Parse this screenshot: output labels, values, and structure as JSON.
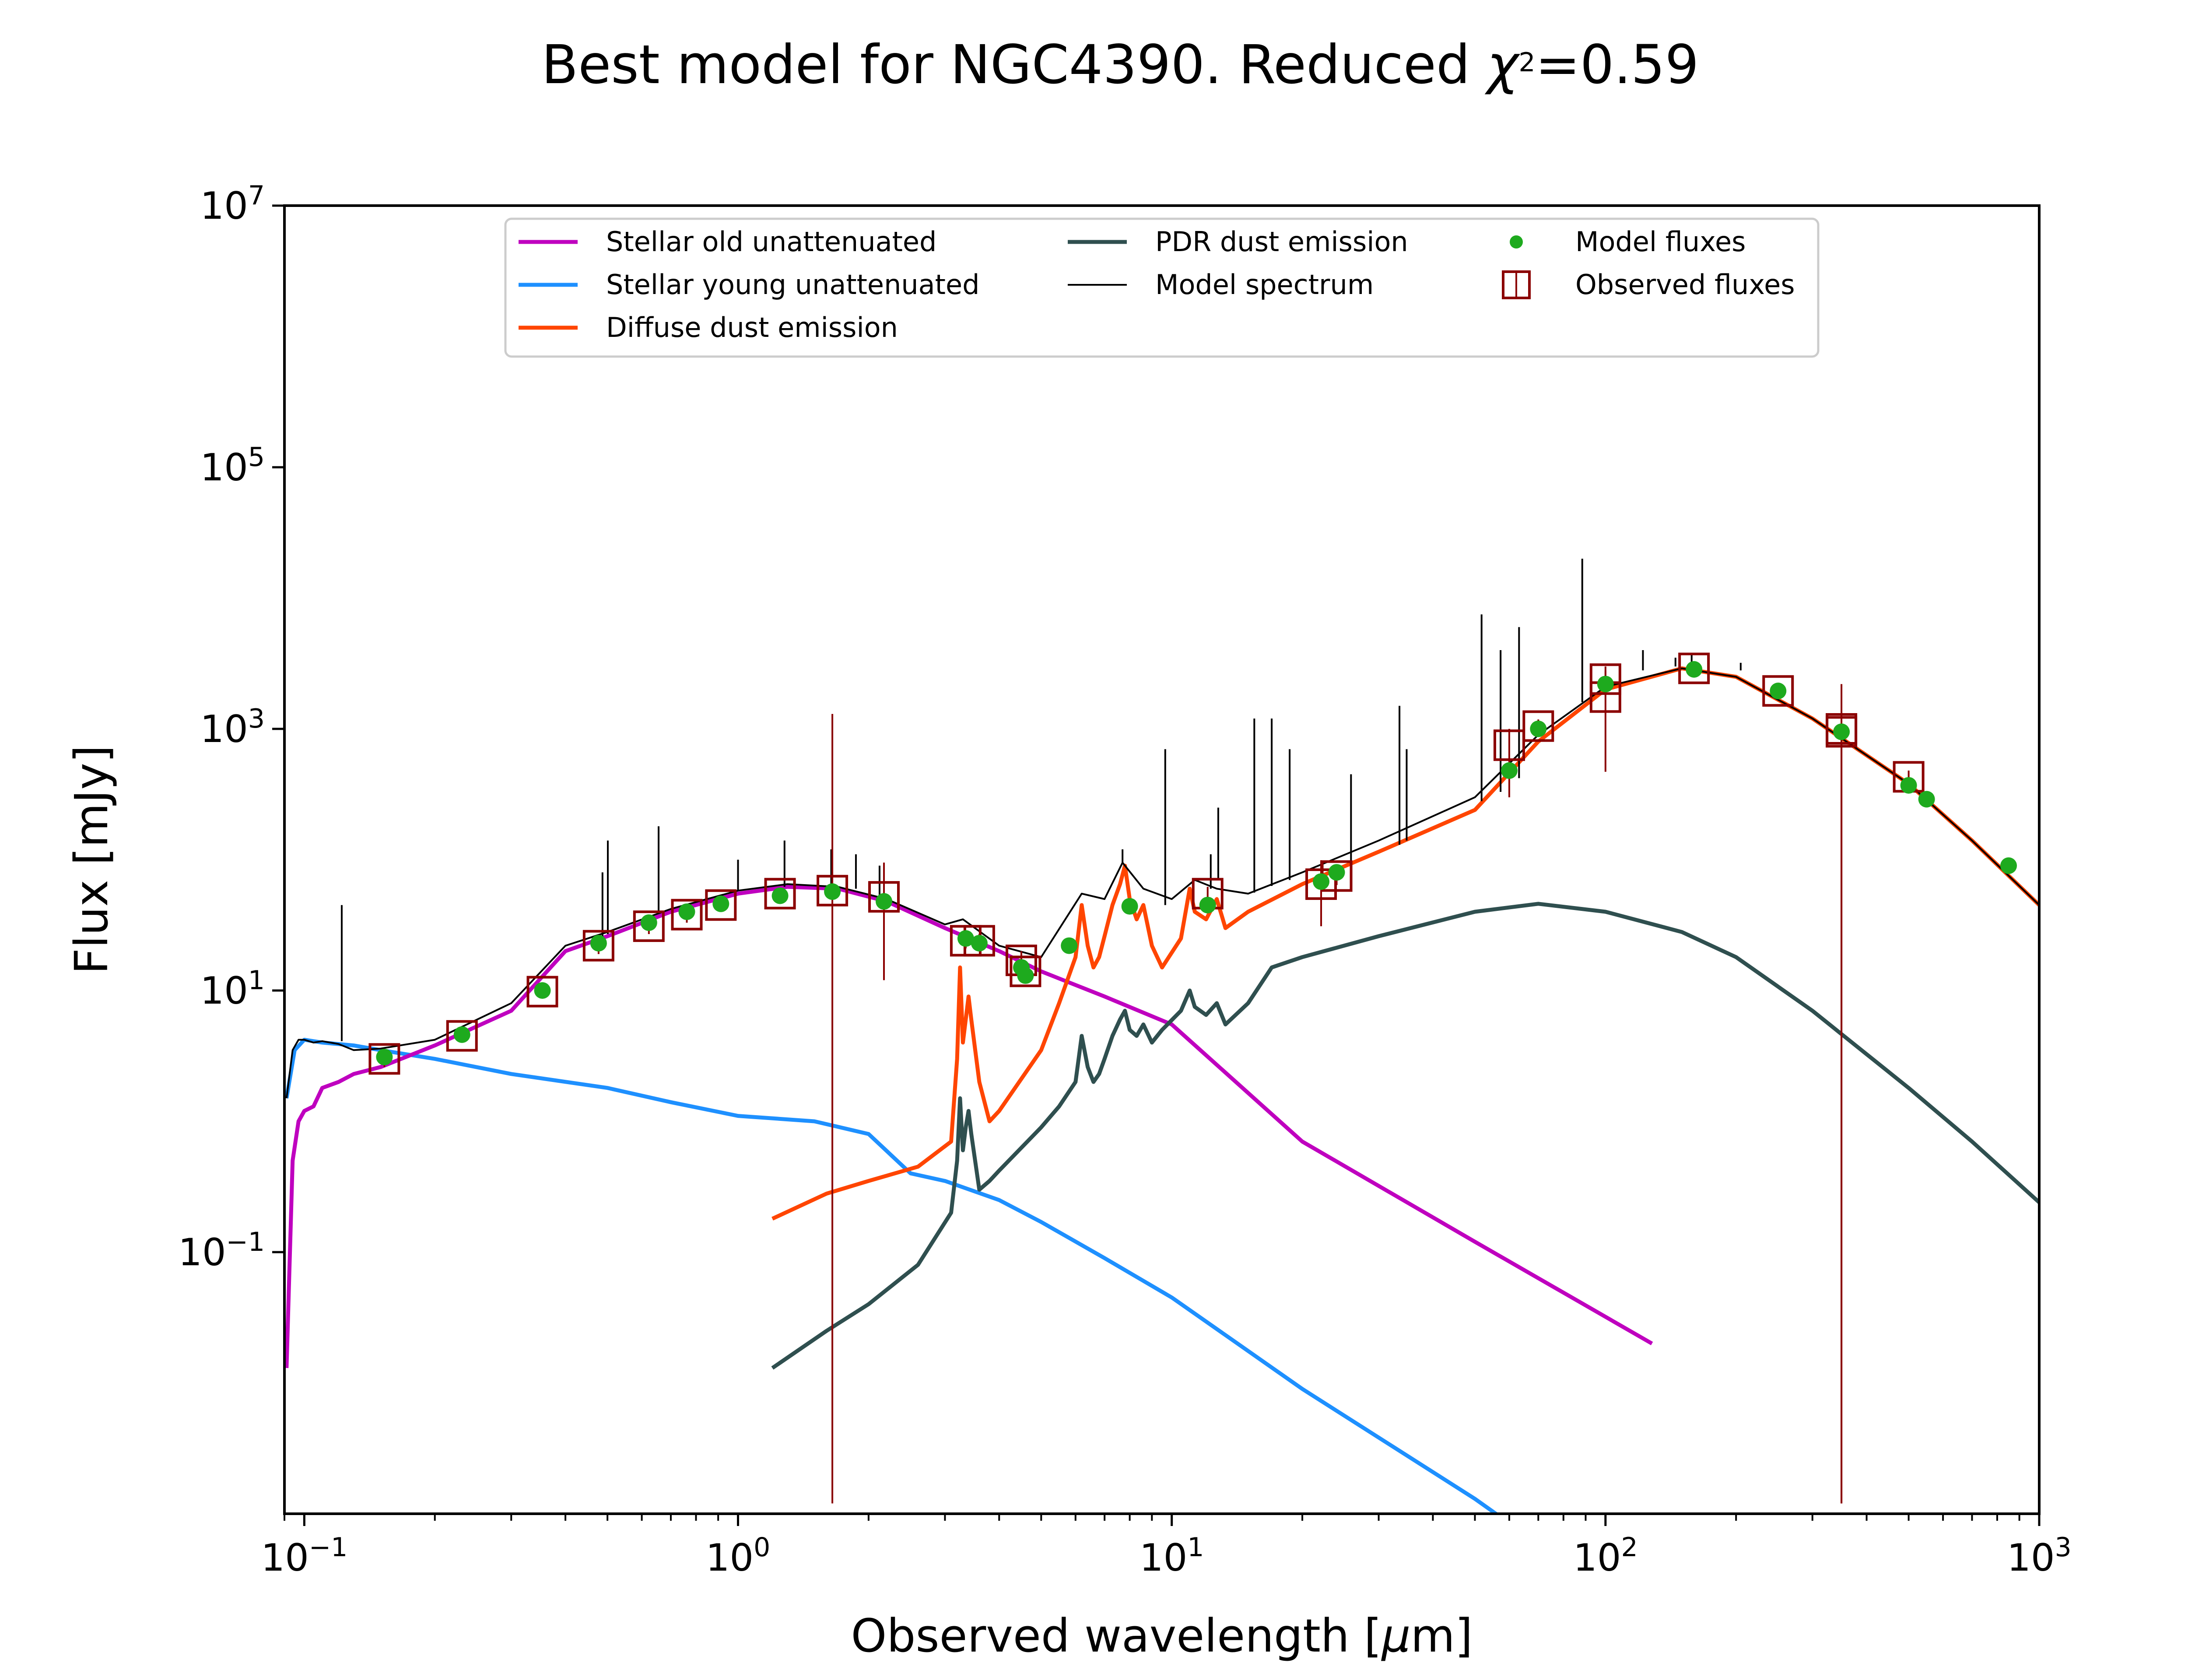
{
  "chart_data": {
    "type": "line",
    "title": "Best model for NGC4390. Reduced χ²=0.59",
    "title_parts": {
      "prefix": "Best model for NGC4390. Reduced ",
      "chi": "χ",
      "sup": "2",
      "suffix": "=0.59"
    },
    "xlabel": "Observed wavelength [μm]",
    "xlabel_parts": {
      "prefix": "Observed wavelength [",
      "mu": "μ",
      "suffix": "m]"
    },
    "ylabel": "Flux [mJy]",
    "x_scale": "log",
    "y_scale": "log",
    "xlim": [
      0.09,
      1000
    ],
    "ylim": [
      0.001,
      10000000
    ],
    "grid": false,
    "legend_position": "top-center",
    "x_ticks": [
      {
        "value": 0.1,
        "base": "10",
        "exp": "−1"
      },
      {
        "value": 1,
        "base": "10",
        "exp": "0"
      },
      {
        "value": 10,
        "base": "10",
        "exp": "1"
      },
      {
        "value": 100,
        "base": "10",
        "exp": "2"
      },
      {
        "value": 1000,
        "base": "10",
        "exp": "3"
      }
    ],
    "y_ticks": [
      {
        "value": 0.1,
        "base": "10",
        "exp": "−1"
      },
      {
        "value": 10,
        "base": "10",
        "exp": "1"
      },
      {
        "value": 1000,
        "base": "10",
        "exp": "3"
      },
      {
        "value": 100000,
        "base": "10",
        "exp": "5"
      },
      {
        "value": 10000000,
        "base": "10",
        "exp": "7"
      }
    ],
    "colors": {
      "stellar_old": "#bf00bf",
      "stellar_young": "#1e90ff",
      "diffuse_dust": "#ff4500",
      "pdr_dust": "#2f4f4f",
      "model_spectrum": "#000000",
      "model_fluxes": "#1eaa1e",
      "observed_fluxes": "#8b0000"
    },
    "series": [
      {
        "key": "stellar_old",
        "name": "Stellar old unattenuated",
        "kind": "line",
        "x": [
          0.091,
          0.094,
          0.097,
          0.1,
          0.105,
          0.11,
          0.12,
          0.13,
          0.15,
          0.2,
          0.3,
          0.4,
          0.5,
          0.7,
          1.0,
          1.3,
          1.7,
          2.2,
          3.0,
          4.0,
          5.0,
          7.0,
          10,
          20,
          50,
          128
        ],
        "y": [
          0.013,
          0.5,
          1.0,
          1.2,
          1.3,
          1.8,
          2.0,
          2.3,
          2.6,
          3.8,
          7,
          20,
          26,
          40,
          55,
          62,
          60,
          48,
          30,
          20,
          14,
          9,
          5.5,
          0.7,
          0.12,
          0.02
        ]
      },
      {
        "key": "stellar_young",
        "name": "Stellar young unattenuated",
        "kind": "line",
        "x": [
          0.091,
          0.095,
          0.1,
          0.11,
          0.13,
          0.15,
          0.2,
          0.3,
          0.5,
          0.7,
          1.0,
          1.5,
          2.0,
          2.5,
          3.0,
          4.0,
          5.0,
          7.0,
          10,
          20,
          50,
          75
        ],
        "y": [
          1.5,
          3.5,
          4.2,
          4.0,
          3.8,
          3.5,
          3.0,
          2.3,
          1.8,
          1.4,
          1.1,
          1.0,
          0.8,
          0.4,
          0.35,
          0.25,
          0.17,
          0.09,
          0.045,
          0.009,
          0.0013,
          0.0005
        ]
      },
      {
        "key": "diffuse_dust",
        "name": "Diffuse dust emission",
        "kind": "line",
        "x": [
          1.2,
          1.6,
          2.0,
          2.6,
          3.1,
          3.2,
          3.25,
          3.3,
          3.35,
          3.4,
          3.45,
          3.6,
          3.8,
          4.0,
          5.0,
          5.5,
          6.0,
          6.2,
          6.4,
          6.6,
          6.8,
          7.0,
          7.3,
          7.6,
          7.8,
          8.0,
          8.3,
          8.6,
          9.0,
          9.5,
          10.5,
          11.0,
          11.3,
          12.0,
          12.7,
          13.3,
          15,
          20,
          30,
          50,
          70,
          100,
          150,
          200,
          300,
          500,
          700,
          1000
        ],
        "y": [
          0.18,
          0.28,
          0.35,
          0.45,
          0.7,
          3,
          15,
          4,
          6,
          9,
          6,
          2,
          1.0,
          1.2,
          3.5,
          8,
          18,
          45,
          22,
          15,
          18,
          26,
          45,
          65,
          90,
          50,
          35,
          45,
          22,
          15,
          25,
          60,
          40,
          35,
          50,
          30,
          40,
          65,
          115,
          240,
          800,
          2000,
          2900,
          2500,
          1200,
          380,
          140,
          45
        ]
      },
      {
        "key": "pdr_dust",
        "name": "PDR dust emission",
        "kind": "line",
        "x": [
          1.2,
          1.6,
          2.0,
          2.6,
          3.1,
          3.2,
          3.25,
          3.3,
          3.35,
          3.4,
          3.45,
          3.6,
          3.8,
          4.0,
          5.0,
          5.5,
          6.0,
          6.2,
          6.4,
          6.6,
          6.8,
          7.0,
          7.3,
          7.6,
          7.8,
          8.0,
          8.3,
          8.6,
          9.0,
          9.5,
          10.5,
          11.0,
          11.3,
          12.0,
          12.7,
          13.3,
          15,
          17,
          20,
          30,
          50,
          70,
          100,
          150,
          200,
          300,
          500,
          700,
          1000
        ],
        "y": [
          0.013,
          0.025,
          0.04,
          0.08,
          0.2,
          0.5,
          1.5,
          0.6,
          0.9,
          1.2,
          0.8,
          0.3,
          0.35,
          0.42,
          0.9,
          1.3,
          2.0,
          4.5,
          2.6,
          2.0,
          2.3,
          3.0,
          4.5,
          6.0,
          7.0,
          5.0,
          4.5,
          5.5,
          4.0,
          5.0,
          7.0,
          10.0,
          7.5,
          6.5,
          8.0,
          5.5,
          8.0,
          15,
          18,
          26,
          40,
          46,
          40,
          28,
          18,
          7,
          1.8,
          0.7,
          0.24
        ]
      },
      {
        "key": "model_spectrum",
        "name": "Model spectrum",
        "kind": "line",
        "x": [
          0.091,
          0.094,
          0.097,
          0.1,
          0.105,
          0.11,
          0.12,
          0.13,
          0.15,
          0.2,
          0.3,
          0.4,
          0.5,
          0.7,
          1.0,
          1.3,
          1.7,
          2.2,
          3.0,
          3.3,
          4.0,
          5.0,
          6.2,
          7.0,
          7.7,
          8.6,
          10,
          11.3,
          12.7,
          15,
          20,
          30,
          50,
          70,
          100,
          150,
          200,
          300,
          500,
          700,
          1000
        ],
        "y": [
          1.5,
          3.5,
          4.2,
          4.2,
          4.0,
          4.1,
          3.9,
          3.5,
          3.6,
          4.2,
          8,
          22,
          28,
          42,
          58,
          65,
          62,
          50,
          32,
          35,
          22,
          18,
          55,
          50,
          95,
          60,
          50,
          70,
          60,
          55,
          80,
          140,
          300,
          900,
          2100,
          2900,
          2500,
          1200,
          380,
          140,
          45
        ]
      },
      {
        "key": "model_spectrum_lines",
        "name": "",
        "kind": "spikes",
        "x": [
          0.122,
          0.487,
          0.501,
          0.656,
          1.0,
          1.28,
          1.64,
          1.87,
          2.12,
          7.7,
          9.66,
          12.3,
          12.8,
          15.5,
          17.0,
          18.7,
          25.9,
          33.5,
          34.8,
          51.8,
          57.3,
          63.2,
          88.4,
          122,
          145,
          158,
          205
        ],
        "base": [
          4.1,
          25,
          27,
          40,
          58,
          62,
          65,
          60,
          52,
          95,
          45,
          60,
          70,
          56,
          63,
          70,
          95,
          130,
          140,
          280,
          330,
          420,
          1600,
          2800,
          3000,
          2950,
          2800
        ],
        "y": [
          45,
          80,
          140,
          180,
          100,
          140,
          120,
          110,
          90,
          120,
          700,
          110,
          250,
          1200,
          1200,
          700,
          450,
          1500,
          700,
          7500,
          4000,
          6000,
          20000,
          4000,
          3500,
          3800,
          3200
        ]
      },
      {
        "key": "model_fluxes",
        "name": "Model fluxes",
        "kind": "points",
        "x": [
          0.153,
          0.231,
          0.354,
          0.477,
          0.623,
          0.762,
          0.913,
          1.25,
          1.65,
          2.17,
          3.35,
          3.6,
          4.5,
          4.6,
          5.8,
          8.0,
          12.1,
          22.1,
          24,
          60,
          70,
          100,
          160,
          250,
          350,
          500,
          550,
          850
        ],
        "y": [
          3.1,
          4.6,
          10,
          23,
          33,
          40,
          46,
          53,
          57,
          48,
          25,
          23,
          15,
          13,
          22,
          44,
          45,
          68,
          80,
          480,
          1000,
          2200,
          2850,
          1950,
          950,
          370,
          290,
          90
        ]
      },
      {
        "key": "observed_fluxes",
        "name": "Observed fluxes",
        "kind": "squares",
        "x": [
          0.153,
          0.231,
          0.354,
          0.477,
          0.623,
          0.762,
          0.913,
          1.25,
          1.65,
          2.17,
          3.35,
          3.6,
          4.5,
          4.6,
          12.1,
          22.1,
          24,
          60,
          70,
          100,
          100,
          160,
          250,
          350,
          350,
          500
        ],
        "y": [
          3.0,
          4.5,
          9.8,
          22,
          31,
          38,
          45,
          55,
          58,
          52,
          24,
          24,
          17,
          14,
          55,
          65,
          75,
          750,
          1050,
          1750,
          2400,
          2900,
          1950,
          1000,
          950,
          430
        ],
        "yerr_low": [
          2.6,
          4.0,
          8.7,
          19,
          27,
          33,
          40,
          49,
          0.0012,
          12,
          21,
          21,
          14,
          12,
          48,
          31,
          64,
          300,
          920,
          470,
          2000,
          2600,
          1750,
          0.0012,
          0.0012,
          380
        ],
        "yerr_high": [
          3.4,
          5.0,
          11,
          25,
          35,
          43,
          50,
          61,
          1300,
          95,
          27,
          27,
          20,
          16,
          62,
          99,
          86,
          1000,
          1180,
          3000,
          2800,
          3200,
          2150,
          2200,
          1050,
          480
        ]
      }
    ],
    "legend": [
      {
        "key": "stellar_old",
        "label": "Stellar old unattenuated"
      },
      {
        "key": "stellar_young",
        "label": "Stellar young unattenuated"
      },
      {
        "key": "diffuse_dust",
        "label": "Diffuse dust emission"
      },
      {
        "key": "pdr_dust",
        "label": "PDR dust emission"
      },
      {
        "key": "model_spectrum",
        "label": "Model spectrum"
      },
      {
        "key": "model_fluxes",
        "label": "Model fluxes"
      },
      {
        "key": "observed_fluxes",
        "label": "Observed fluxes"
      }
    ]
  }
}
